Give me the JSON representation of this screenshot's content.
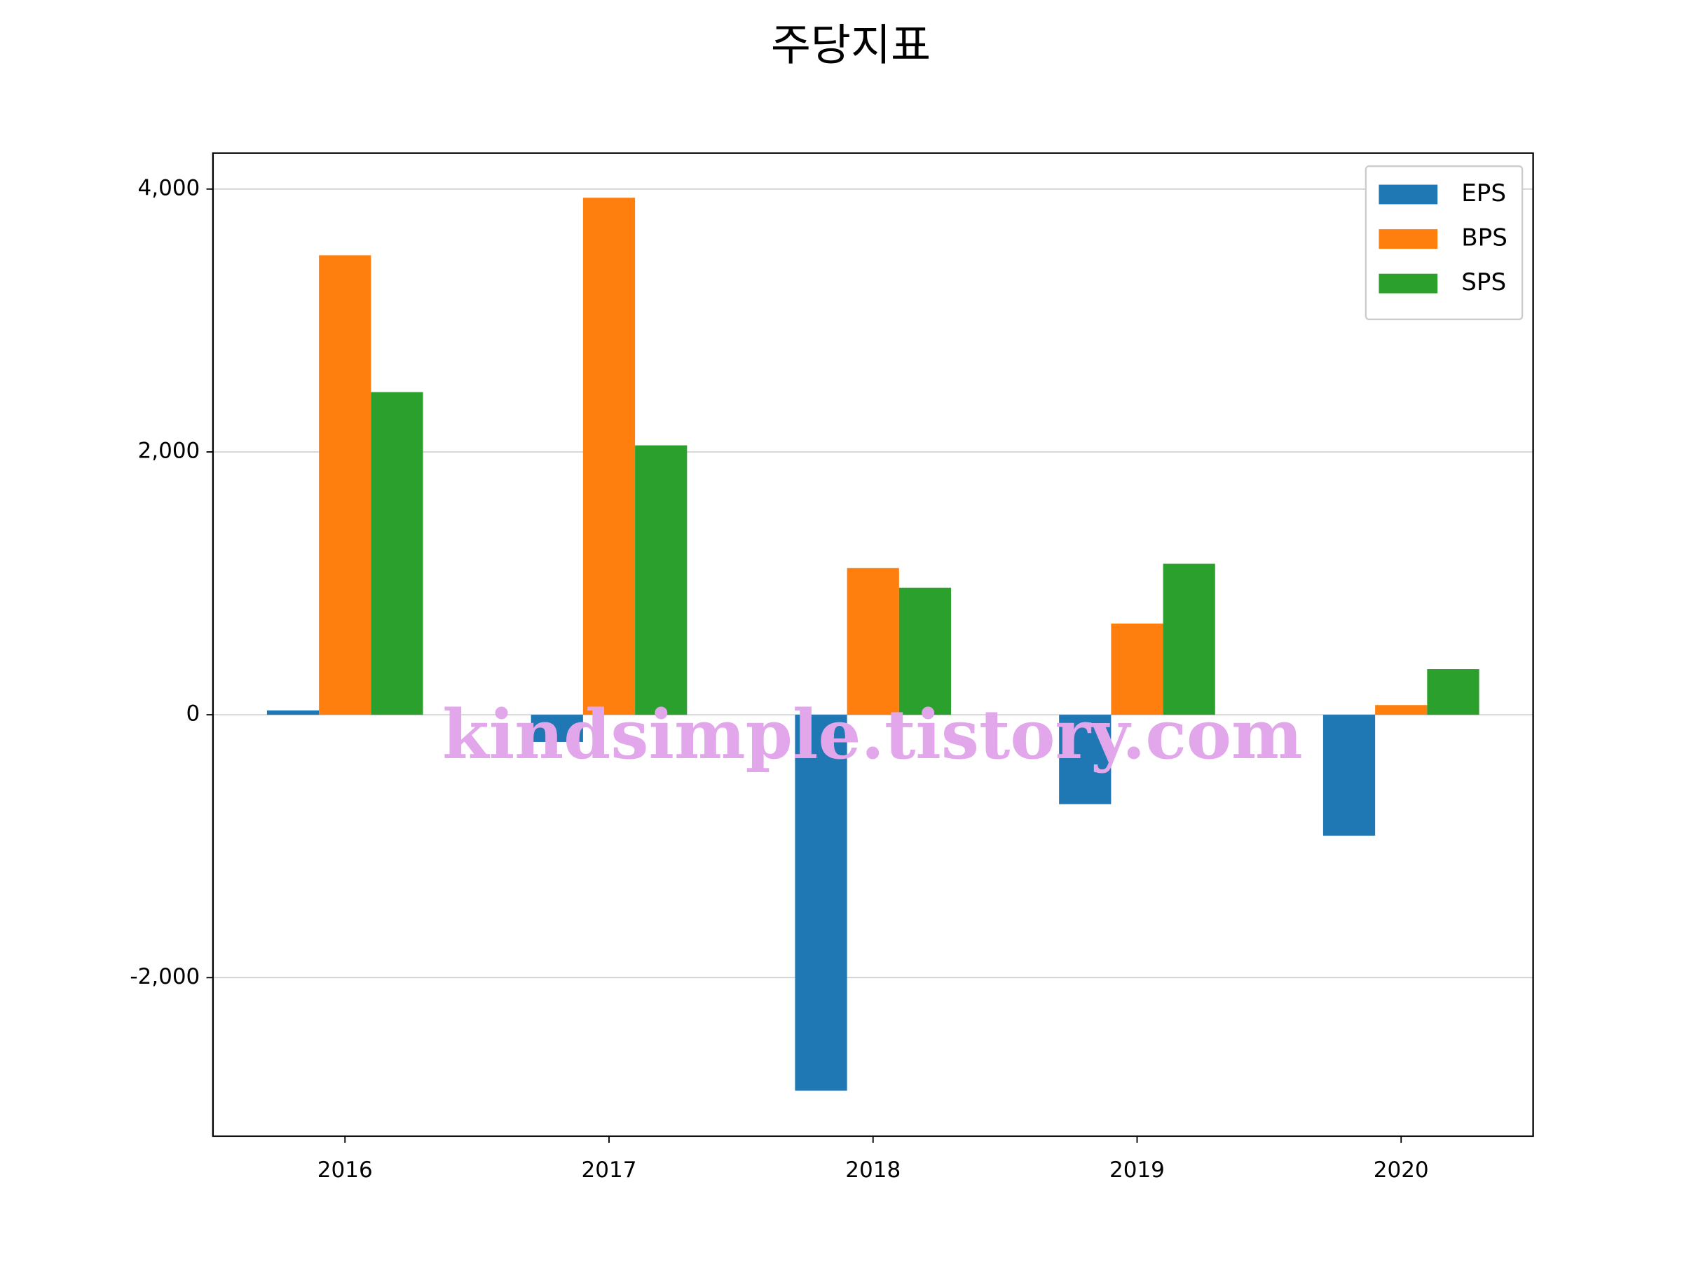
{
  "chart_data": {
    "type": "bar",
    "title": "주당지표",
    "watermark": "kindsimple.tistory.com",
    "categories": [
      "2016",
      "2017",
      "2018",
      "2019",
      "2020"
    ],
    "series": [
      {
        "name": "EPS",
        "color": "#1f77b4",
        "values": [
          33,
          -207,
          -2860,
          -680,
          -920
        ]
      },
      {
        "name": "BPS",
        "color": "#ff7f0e",
        "values": [
          3496,
          3934,
          1116,
          694,
          74
        ]
      },
      {
        "name": "SPS",
        "color": "#2ca02c",
        "values": [
          2455,
          2050,
          967,
          1149,
          347
        ]
      }
    ],
    "ylim": [
      -3207,
      4273
    ],
    "yticks": [
      {
        "value": -2000,
        "label": "-2,000"
      },
      0,
      {
        "value": 2000,
        "label": "2,000"
      },
      {
        "value": 4000,
        "label": "4,000"
      }
    ],
    "grid": true,
    "legend": "upper right"
  }
}
